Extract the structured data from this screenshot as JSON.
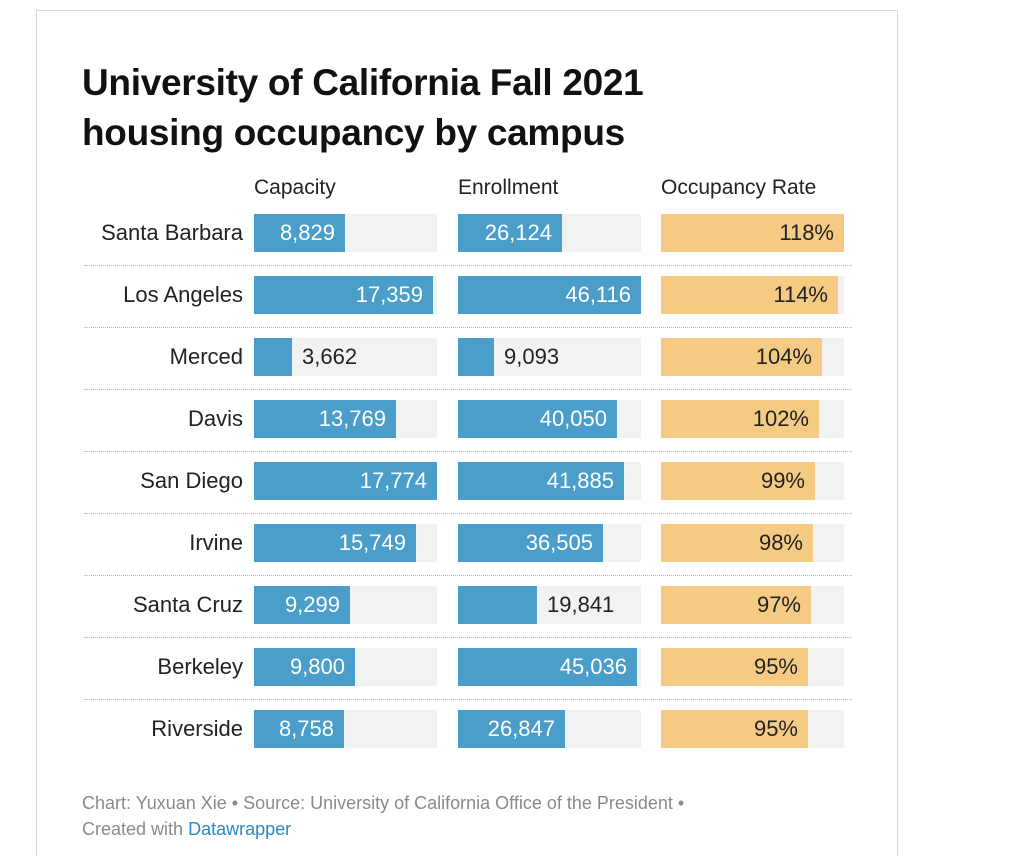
{
  "chart_data": {
    "type": "table",
    "title_line1": "University of California Fall 2021",
    "title_line2": "housing occupancy by campus",
    "columns": [
      "Capacity",
      "Enrollment",
      "Occupancy Rate"
    ],
    "rows": [
      {
        "campus": "Santa Barbara",
        "capacity": 8829,
        "capacity_label": "8,829",
        "enrollment": 26124,
        "enrollment_label": "26,124",
        "rate": 118,
        "rate_label": "118%"
      },
      {
        "campus": "Los Angeles",
        "capacity": 17359,
        "capacity_label": "17,359",
        "enrollment": 46116,
        "enrollment_label": "46,116",
        "rate": 114,
        "rate_label": "114%"
      },
      {
        "campus": "Merced",
        "capacity": 3662,
        "capacity_label": "3,662",
        "enrollment": 9093,
        "enrollment_label": "9,093",
        "rate": 104,
        "rate_label": "104%"
      },
      {
        "campus": "Davis",
        "capacity": 13769,
        "capacity_label": "13,769",
        "enrollment": 40050,
        "enrollment_label": "40,050",
        "rate": 102,
        "rate_label": "102%"
      },
      {
        "campus": "San Diego",
        "capacity": 17774,
        "capacity_label": "17,774",
        "enrollment": 41885,
        "enrollment_label": "41,885",
        "rate": 99,
        "rate_label": "99%"
      },
      {
        "campus": "Irvine",
        "capacity": 15749,
        "capacity_label": "15,749",
        "enrollment": 36505,
        "enrollment_label": "36,505",
        "rate": 98,
        "rate_label": "98%"
      },
      {
        "campus": "Santa Cruz",
        "capacity": 9299,
        "capacity_label": "9,299",
        "enrollment": 19841,
        "enrollment_label": "19,841",
        "rate": 97,
        "rate_label": "97%"
      },
      {
        "campus": "Berkeley",
        "capacity": 9800,
        "capacity_label": "9,800",
        "enrollment": 45036,
        "enrollment_label": "45,036",
        "rate": 95,
        "rate_label": "95%"
      },
      {
        "campus": "Riverside",
        "capacity": 8758,
        "capacity_label": "8,758",
        "enrollment": 26847,
        "enrollment_label": "26,847",
        "rate": 95,
        "rate_label": "95%"
      }
    ],
    "scales": {
      "capacity_max": 17774,
      "enrollment_max": 46116,
      "rate_max": 118
    },
    "colors": {
      "count_bar": "#4a9ec9",
      "rate_bar": "#f5cb83",
      "track": "#f2f2f2"
    }
  },
  "footer": {
    "text": "Chart: Yuxuan Xie • Source: University of California Office of the President •",
    "created_prefix": "Created with",
    "created_link": "Datawrapper"
  }
}
